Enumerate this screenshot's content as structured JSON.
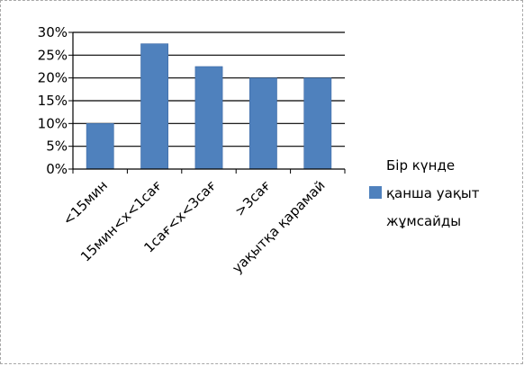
{
  "chart_data": {
    "type": "bar",
    "categories": [
      "<15мин",
      "15мин<x<1сағ",
      "1сағ<x<3сағ",
      ">3сағ",
      "уақытқа қарамай"
    ],
    "series": [
      {
        "name": "Бір күнде қанша уақыт жұмсайды",
        "values": [
          10,
          27.5,
          22.5,
          20,
          20
        ],
        "color": "#4F81BD"
      }
    ],
    "yticks": [
      "0%",
      "5%",
      "10%",
      "15%",
      "20%",
      "25%",
      "30%"
    ],
    "ylim": [
      0,
      30
    ],
    "y_unit": "percent",
    "grid": true,
    "legend_position": "right",
    "legend_lines": [
      "Бір күнде",
      "қанша уақыт",
      "жұмсайды"
    ],
    "title": "",
    "xlabel": "",
    "ylabel": ""
  }
}
